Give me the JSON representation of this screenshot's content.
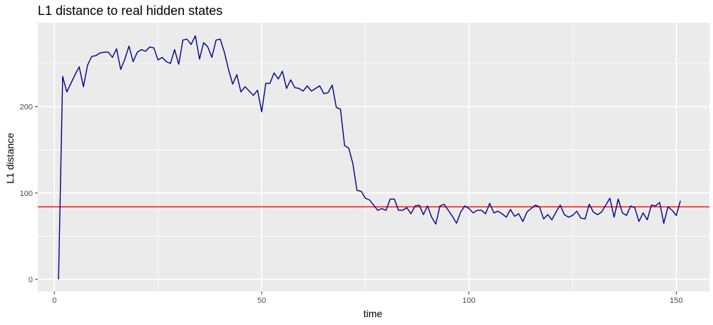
{
  "chart_data": {
    "type": "line",
    "title": "L1 distance to real hidden states",
    "xlabel": "time",
    "ylabel": "L1 distance",
    "xlim": [
      -4,
      158
    ],
    "ylim": [
      -14,
      297
    ],
    "x_ticks": [
      0,
      50,
      100,
      150
    ],
    "y_ticks": [
      0,
      100,
      200
    ],
    "grid": true,
    "series": [
      {
        "color": "#00008b",
        "x": [
          1,
          2,
          3,
          4,
          5,
          6,
          7,
          8,
          9,
          10,
          11,
          12,
          13,
          14,
          15,
          16,
          17,
          18,
          19,
          20,
          21,
          22,
          23,
          24,
          25,
          26,
          27,
          28,
          29,
          30,
          31,
          32,
          33,
          34,
          35,
          36,
          37,
          38,
          39,
          40,
          41,
          42,
          43,
          44,
          45,
          46,
          47,
          48,
          49,
          50,
          51,
          52,
          53,
          54,
          55,
          56,
          57,
          58,
          59,
          60,
          61,
          62,
          63,
          64,
          65,
          66,
          67,
          68,
          69,
          70,
          71,
          72,
          73,
          74,
          75,
          76,
          77,
          78,
          79,
          80,
          81,
          82,
          83,
          84,
          85,
          86,
          87,
          88,
          89,
          90,
          91,
          92,
          93,
          94,
          95,
          96,
          97,
          98,
          99,
          100,
          101,
          102,
          103,
          104,
          105,
          106,
          107,
          108,
          109,
          110,
          111,
          112,
          113,
          114,
          115,
          116,
          117,
          118,
          119,
          120,
          121,
          122,
          123,
          124,
          125,
          126,
          127,
          128,
          129,
          130,
          131,
          132,
          133,
          134,
          135,
          136,
          137,
          138,
          139,
          140,
          141,
          142,
          143,
          144,
          145,
          146,
          147,
          148,
          149,
          150,
          151
        ],
        "y": [
          0,
          235,
          217,
          227,
          237,
          246,
          223,
          248,
          258,
          259,
          262,
          263,
          263,
          257,
          267,
          243,
          255,
          270,
          252,
          263,
          266,
          264,
          269,
          268,
          254,
          257,
          252,
          250,
          266,
          249,
          277,
          278,
          272,
          282,
          255,
          274,
          269,
          257,
          277,
          278,
          263,
          243,
          226,
          237,
          217,
          223,
          218,
          213,
          219,
          194,
          227,
          227,
          239,
          232,
          241,
          221,
          231,
          222,
          221,
          218,
          224,
          218,
          221,
          224,
          215,
          216,
          225,
          199,
          197,
          155,
          152,
          134,
          103,
          102,
          94,
          92,
          86,
          80,
          82,
          80,
          93,
          93,
          80,
          80,
          83,
          76,
          85,
          86,
          75,
          85,
          72,
          64,
          85,
          87,
          80,
          73,
          65,
          78,
          85,
          82,
          77,
          80,
          80,
          76,
          88,
          77,
          79,
          76,
          72,
          81,
          73,
          76,
          67,
          78,
          82,
          86,
          84,
          70,
          75,
          69,
          78,
          86,
          75,
          72,
          74,
          79,
          71,
          70,
          87,
          78,
          75,
          78,
          86,
          94,
          72,
          93,
          77,
          74,
          85,
          83,
          67,
          77,
          69,
          86,
          85,
          89,
          65,
          84,
          80,
          74,
          91
        ]
      }
    ],
    "reference_lines": [
      {
        "orientation": "horizontal",
        "y": 84,
        "color": "#ff0000"
      }
    ]
  }
}
